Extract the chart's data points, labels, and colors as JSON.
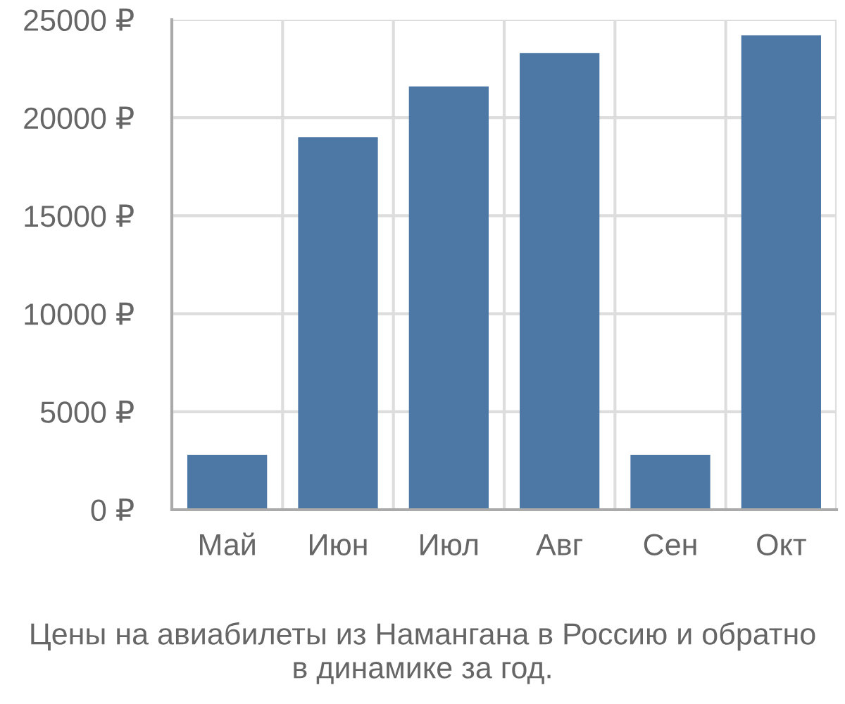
{
  "chart_data": {
    "type": "bar",
    "title": "Цены на авиабилеты из Намангана в Россию и обратно\nв динамике за год.",
    "categories": [
      "Май",
      "Июн",
      "Июл",
      "Авг",
      "Сен",
      "Окт"
    ],
    "values": [
      2800,
      19000,
      21600,
      23300,
      2800,
      24200
    ],
    "color": "#4d78a6",
    "ylim": [
      0,
      25000
    ],
    "yticks": [
      {
        "value": 0,
        "label": "0 ₽"
      },
      {
        "value": 5000,
        "label": "5000 ₽"
      },
      {
        "value": 10000,
        "label": "10000 ₽"
      },
      {
        "value": 15000,
        "label": "15000 ₽"
      },
      {
        "value": 20000,
        "label": "20000 ₽"
      },
      {
        "value": 25000,
        "label": "25000 ₽"
      }
    ],
    "grid": true
  }
}
